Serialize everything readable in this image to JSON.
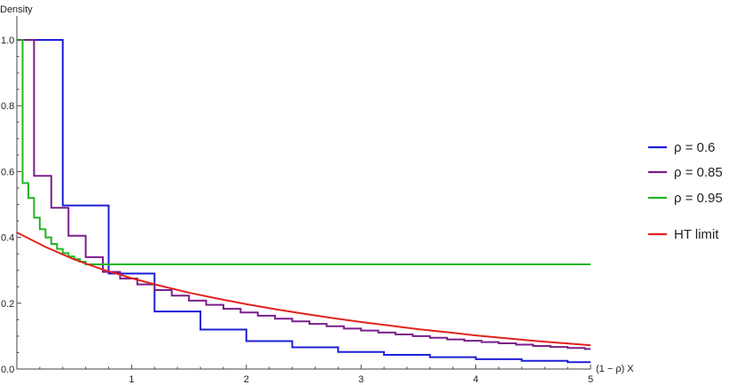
{
  "chart_data": {
    "type": "line",
    "xlabel": "(1 − ρ) X",
    "ylabel": "Density",
    "xlim": [
      0,
      5
    ],
    "ylim": [
      0,
      1.0
    ],
    "x_ticks": [
      1,
      2,
      3,
      4,
      5
    ],
    "x_tick_labels": [
      "1",
      "2",
      "3",
      "4",
      "5"
    ],
    "y_ticks": [
      0.0,
      0.2,
      0.4,
      0.6,
      0.8,
      1.0
    ],
    "y_tick_labels": [
      "0.0",
      "0.2",
      "0.4",
      "0.6",
      "0.8",
      "1.0"
    ],
    "grid": false,
    "legend_position": "right",
    "series": [
      {
        "name": "ρ = 0.6",
        "color": "#1f1fd6",
        "style": "step",
        "bin_width": 0.4,
        "values": [
          1.0,
          0.497,
          0.29,
          0.175,
          0.12,
          0.085,
          0.066,
          0.052,
          0.043,
          0.036,
          0.03,
          0.025,
          0.021
        ]
      },
      {
        "name": "ρ = 0.85",
        "color": "#7a1e8a",
        "style": "step",
        "bin_width": 0.15,
        "values": [
          1.0,
          0.587,
          0.49,
          0.405,
          0.34,
          0.295,
          0.275,
          0.257,
          0.24,
          0.223,
          0.208,
          0.195,
          0.183,
          0.172,
          0.162,
          0.153,
          0.145,
          0.137,
          0.13,
          0.123,
          0.117,
          0.111,
          0.105,
          0.1,
          0.095,
          0.09,
          0.086,
          0.082,
          0.078,
          0.074,
          0.07,
          0.067,
          0.064,
          0.061,
          0.058
        ]
      },
      {
        "name": "ρ = 0.95",
        "color": "#22b522",
        "style": "step",
        "bin_width": 0.05,
        "values": [
          1.0,
          0.565,
          0.52,
          0.46,
          0.425,
          0.4,
          0.38,
          0.365,
          0.352,
          0.342,
          0.334,
          0.326,
          0.318
        ]
      },
      {
        "name": "HT limit",
        "color": "#e0231e",
        "style": "line",
        "x": [
          0,
          0.25,
          0.5,
          0.75,
          1.0,
          1.25,
          1.5,
          1.75,
          2.0,
          2.25,
          2.5,
          2.75,
          3.0,
          3.25,
          3.5,
          3.75,
          4.0,
          4.25,
          4.5,
          4.75,
          5.0
        ],
        "values": [
          0.415,
          0.371,
          0.333,
          0.302,
          0.276,
          0.253,
          0.232,
          0.214,
          0.197,
          0.182,
          0.168,
          0.155,
          0.143,
          0.132,
          0.121,
          0.112,
          0.102,
          0.094,
          0.086,
          0.079,
          0.072
        ]
      }
    ]
  }
}
